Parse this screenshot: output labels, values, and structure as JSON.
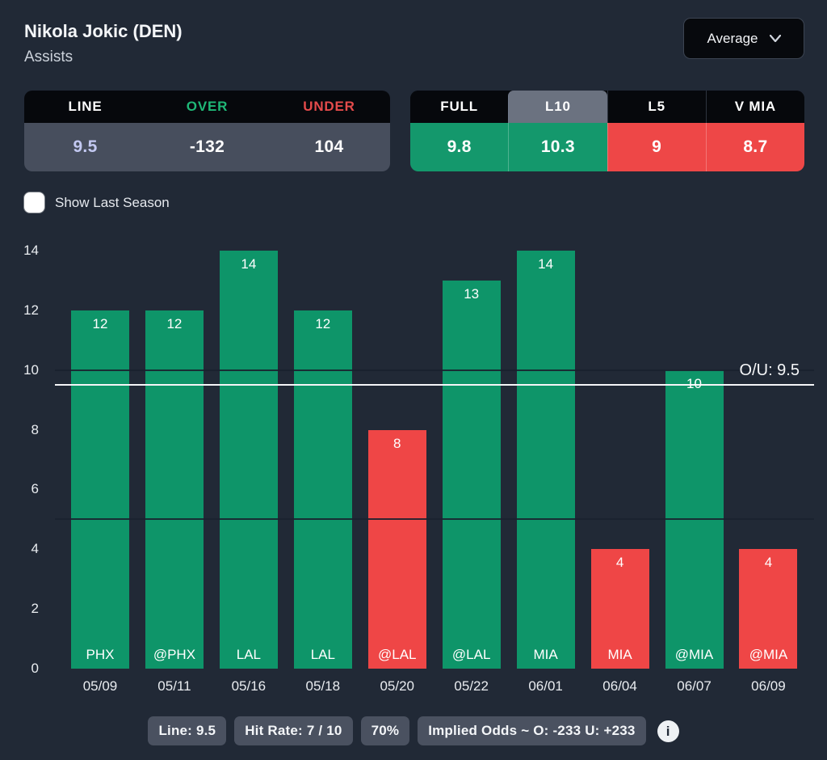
{
  "header": {
    "player": "Nikola Jokic (DEN)",
    "stat": "Assists",
    "average_dropdown": "Average"
  },
  "odds_table": {
    "columns": [
      {
        "key": "line",
        "label": "LINE",
        "value": "9.5"
      },
      {
        "key": "over",
        "label": "OVER",
        "value": "-132"
      },
      {
        "key": "under",
        "label": "UNDER",
        "value": "104"
      }
    ]
  },
  "splits_table": {
    "tabs": [
      {
        "key": "full",
        "label": "FULL",
        "value": "9.8",
        "selected": false,
        "status": "green"
      },
      {
        "key": "l10",
        "label": "L10",
        "value": "10.3",
        "selected": true,
        "status": "green"
      },
      {
        "key": "l5",
        "label": "L5",
        "value": "9",
        "selected": false,
        "status": "red"
      },
      {
        "key": "v-mia",
        "label": "V MIA",
        "value": "8.7",
        "selected": false,
        "status": "red"
      }
    ]
  },
  "controls": {
    "show_last_season_label": "Show Last Season",
    "checked": false
  },
  "chart_data": {
    "type": "bar",
    "title": "Nikola Jokic (DEN) Assists by game",
    "x": [
      "05/09",
      "05/11",
      "05/16",
      "05/18",
      "05/20",
      "05/22",
      "06/01",
      "06/04",
      "06/07",
      "06/09"
    ],
    "opponents": [
      "PHX",
      "@PHX",
      "LAL",
      "LAL",
      "@LAL",
      "@LAL",
      "MIA",
      "MIA",
      "@MIA",
      "@MIA"
    ],
    "values": [
      12,
      12,
      14,
      12,
      8,
      13,
      14,
      4,
      10,
      4
    ],
    "over_line": [
      true,
      true,
      true,
      true,
      false,
      true,
      true,
      false,
      true,
      false
    ],
    "line": 9.5,
    "line_label": "O/U: 9.5",
    "ylim": [
      0,
      14
    ],
    "yticks": [
      0,
      2,
      4,
      6,
      8,
      10,
      12,
      14
    ],
    "gridlines": [
      5,
      10
    ],
    "legend": "none",
    "colors": {
      "over_bar": "#0e9569",
      "under_bar": "#ef4646"
    }
  },
  "footer": {
    "badges": [
      "Line: 9.5",
      "Hit Rate: 7 / 10",
      "70%",
      "Implied Odds ~ O: -233 U: +233"
    ]
  },
  "colors": {
    "background": "#212936",
    "table_header_bg": "#06080c",
    "table_value_bg": "#474e5d",
    "selected_tab_bg": "#6b7280",
    "green": "#14986c",
    "red": "#ee4747",
    "over_text": "#1fb877",
    "under_text": "#e54b4b",
    "line_value_text": "#c3c9f2",
    "ou_line": "#f5f6f8"
  }
}
